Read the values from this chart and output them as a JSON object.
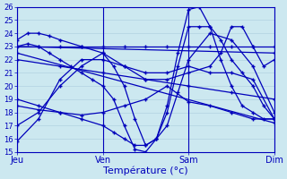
{
  "xlabel": "Température (°c)",
  "background_color": "#cce8f0",
  "grid_color": "#aaccdd",
  "line_color": "#0000bb",
  "xlim": [
    0,
    72
  ],
  "ylim": [
    15,
    26
  ],
  "yticks": [
    15,
    16,
    17,
    18,
    19,
    20,
    21,
    22,
    23,
    24,
    25,
    26
  ],
  "xtick_positions": [
    0,
    24,
    48,
    72
  ],
  "xtick_labels": [
    "Jeu",
    "Ven",
    "Sam",
    "Dim"
  ],
  "series": [
    {
      "x": [
        0,
        3,
        6,
        9,
        12,
        15,
        18,
        21,
        24,
        27,
        30,
        33,
        36,
        39,
        42,
        45,
        48,
        51,
        54,
        57,
        60,
        63,
        66,
        69,
        72
      ],
      "y": [
        23.0,
        23.2,
        23.0,
        22.5,
        22.0,
        21.5,
        21.0,
        20.5,
        20.0,
        19.0,
        17.0,
        15.2,
        15.0,
        16.0,
        18.5,
        22.5,
        25.8,
        26.0,
        24.5,
        22.0,
        20.0,
        18.5,
        18.0,
        17.5,
        17.5
      ]
    },
    {
      "x": [
        0,
        6,
        12,
        18,
        24,
        27,
        30,
        33,
        36,
        39,
        42,
        45,
        48,
        51,
        54,
        57,
        60,
        63,
        66,
        69,
        72
      ],
      "y": [
        17.0,
        18.0,
        20.0,
        21.5,
        22.5,
        21.5,
        20.0,
        17.5,
        15.5,
        16.0,
        18.0,
        21.5,
        24.5,
        24.5,
        24.5,
        23.5,
        22.0,
        21.0,
        20.0,
        18.5,
        17.5
      ]
    },
    {
      "x": [
        0,
        6,
        12,
        18,
        24,
        27,
        30,
        33,
        36,
        39,
        42,
        45,
        48,
        54,
        60,
        66,
        72
      ],
      "y": [
        19.0,
        18.5,
        18.0,
        17.5,
        17.0,
        16.5,
        16.0,
        15.5,
        15.5,
        16.0,
        17.0,
        19.5,
        22.0,
        24.0,
        23.5,
        21.5,
        18.0
      ]
    },
    {
      "x": [
        0,
        6,
        12,
        18,
        24,
        30,
        36,
        42,
        48,
        54,
        60,
        66,
        72
      ],
      "y": [
        15.8,
        17.5,
        20.5,
        22.0,
        22.0,
        21.5,
        21.0,
        21.0,
        21.5,
        21.0,
        21.0,
        20.5,
        17.5
      ]
    },
    {
      "x": [
        0,
        6,
        12,
        18,
        24,
        30,
        36,
        42,
        48,
        54,
        60,
        66,
        72
      ],
      "y": [
        18.5,
        18.2,
        18.0,
        17.8,
        18.0,
        18.5,
        19.0,
        20.0,
        18.8,
        18.5,
        18.0,
        17.5,
        17.5
      ]
    },
    {
      "x": [
        0,
        12,
        24,
        36,
        48,
        60,
        72
      ],
      "y": [
        22.0,
        21.5,
        21.0,
        20.5,
        20.0,
        19.5,
        19.0
      ]
    },
    {
      "x": [
        0,
        72
      ],
      "y": [
        22.5,
        17.2
      ]
    },
    {
      "x": [
        0,
        6,
        12,
        18,
        24,
        30,
        36,
        42,
        48,
        54,
        60,
        66,
        72
      ],
      "y": [
        23.0,
        23.0,
        23.0,
        23.0,
        23.0,
        23.0,
        23.0,
        23.0,
        23.0,
        23.0,
        23.0,
        23.0,
        23.0
      ]
    },
    {
      "x": [
        0,
        72
      ],
      "y": [
        23.0,
        22.5
      ]
    },
    {
      "x": [
        0,
        3,
        6,
        9,
        12,
        18,
        24,
        30,
        36,
        42,
        48,
        54,
        57,
        60,
        63,
        66,
        69,
        72
      ],
      "y": [
        23.5,
        24.0,
        24.0,
        23.8,
        23.5,
        23.0,
        22.5,
        21.5,
        20.5,
        20.5,
        21.0,
        21.5,
        22.5,
        24.5,
        24.5,
        23.0,
        21.5,
        22.0
      ]
    }
  ]
}
